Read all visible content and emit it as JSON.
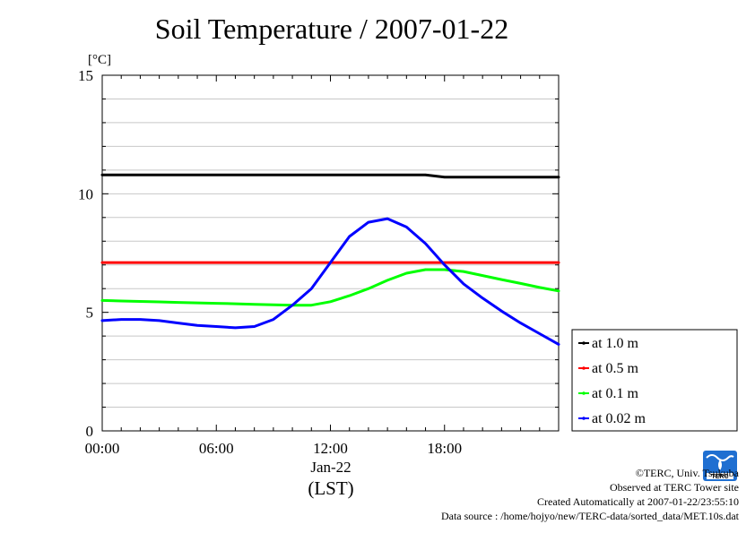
{
  "chart_data": {
    "type": "line",
    "title": "Soil Temperature / 2007-01-22",
    "unit": "[°C]",
    "xlabel": "(LST)",
    "date_label": "Jan-22",
    "xlim": [
      0,
      24
    ],
    "ylim": [
      0,
      15
    ],
    "x_ticks": [
      {
        "value": 0,
        "label": "00:00"
      },
      {
        "value": 6,
        "label": "06:00"
      },
      {
        "value": 12,
        "label": "12:00"
      },
      {
        "value": 18,
        "label": "18:00"
      }
    ],
    "y_ticks": [
      {
        "value": 0,
        "label": "0"
      },
      {
        "value": 5,
        "label": "5"
      },
      {
        "value": 10,
        "label": "10"
      },
      {
        "value": 15,
        "label": "15"
      }
    ],
    "grid": true,
    "legend_position": "right",
    "x": [
      0,
      1,
      2,
      3,
      4,
      5,
      6,
      7,
      8,
      9,
      10,
      11,
      12,
      13,
      14,
      15,
      16,
      17,
      18,
      19,
      20,
      21,
      22,
      23,
      24
    ],
    "series": [
      {
        "name": "at 1.0 m",
        "color": "#000000",
        "values": [
          10.8,
          10.8,
          10.8,
          10.8,
          10.8,
          10.8,
          10.8,
          10.8,
          10.8,
          10.8,
          10.8,
          10.8,
          10.8,
          10.8,
          10.8,
          10.8,
          10.8,
          10.8,
          10.7,
          10.7,
          10.7,
          10.7,
          10.7,
          10.7,
          10.7
        ]
      },
      {
        "name": "at 0.5 m",
        "color": "#ff0000",
        "values": [
          7.1,
          7.1,
          7.1,
          7.1,
          7.1,
          7.1,
          7.1,
          7.1,
          7.1,
          7.1,
          7.1,
          7.1,
          7.1,
          7.1,
          7.1,
          7.1,
          7.1,
          7.1,
          7.1,
          7.1,
          7.1,
          7.1,
          7.1,
          7.1,
          7.1
        ]
      },
      {
        "name": "at 0.1 m",
        "color": "#00ff00",
        "values": [
          5.5,
          5.48,
          5.46,
          5.44,
          5.42,
          5.4,
          5.38,
          5.36,
          5.34,
          5.32,
          5.3,
          5.3,
          5.45,
          5.7,
          6.0,
          6.35,
          6.65,
          6.8,
          6.8,
          6.72,
          6.55,
          6.38,
          6.22,
          6.05,
          5.9
        ]
      },
      {
        "name": "at 0.02 m",
        "color": "#0000ff",
        "values": [
          4.65,
          4.7,
          4.7,
          4.65,
          4.55,
          4.45,
          4.4,
          4.35,
          4.4,
          4.7,
          5.3,
          6.0,
          7.1,
          8.2,
          8.8,
          8.95,
          8.6,
          7.9,
          7.0,
          6.2,
          5.6,
          5.05,
          4.55,
          4.1,
          3.65
        ]
      }
    ]
  },
  "credits": {
    "copyright": "©TERC, Univ. Tsukuba",
    "observed": "Observed at TERC Tower site",
    "created": "Created Automatically at 2007-01-22/23:55:10",
    "source": "Data source : /home/hojyo/new/TERC-data/sorted_data/MET.10s.dat",
    "logo_text": "TERC"
  }
}
